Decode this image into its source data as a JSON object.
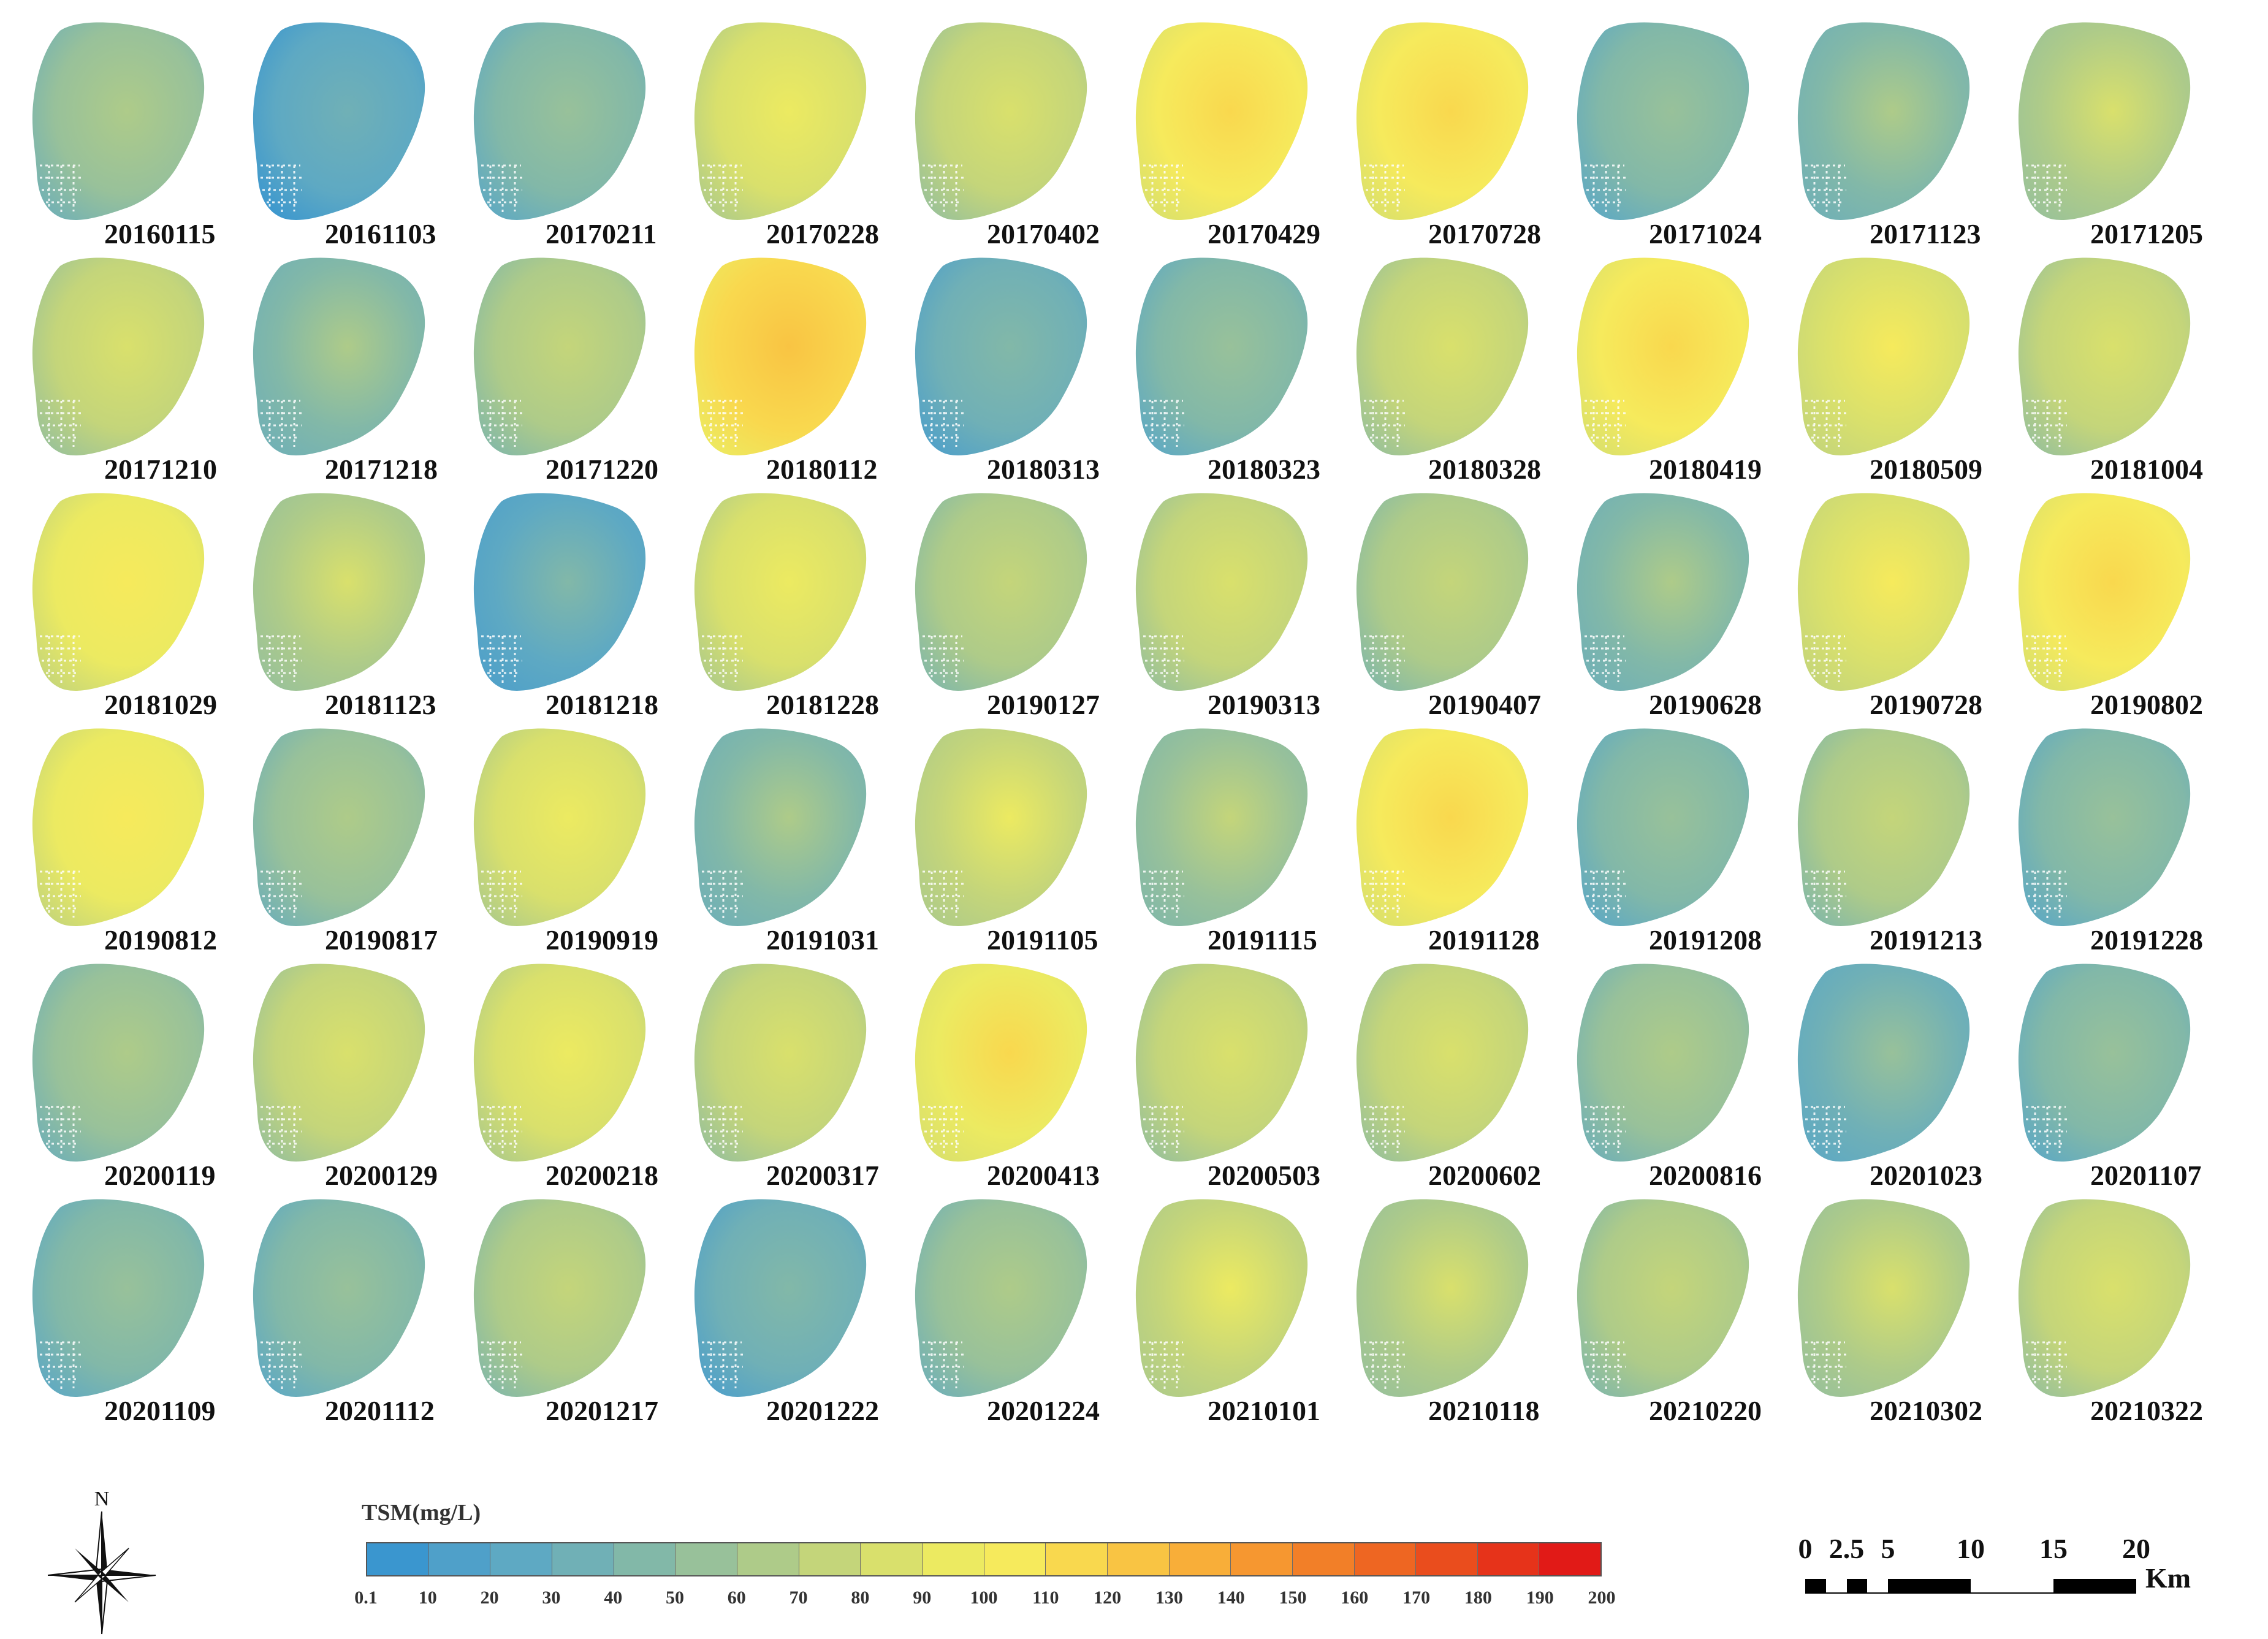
{
  "maps": [
    {
      "date": "20160115",
      "level": 50
    },
    {
      "date": "20161103",
      "level": 22
    },
    {
      "date": "20170211",
      "level": 45
    },
    {
      "date": "20170228",
      "level": 85
    },
    {
      "date": "20170402",
      "level": 72
    },
    {
      "date": "20170429",
      "level": 105
    },
    {
      "date": "20170728",
      "level": 100
    },
    {
      "date": "20171024",
      "level": 40
    },
    {
      "date": "20171123",
      "level": 48
    },
    {
      "date": "20171205",
      "level": 68
    },
    {
      "date": "20171210",
      "level": 72
    },
    {
      "date": "20171218",
      "level": 48
    },
    {
      "date": "20171220",
      "level": 65
    },
    {
      "date": "20180112",
      "level": 112
    },
    {
      "date": "20180313",
      "level": 32
    },
    {
      "date": "20180323",
      "level": 45
    },
    {
      "date": "20180328",
      "level": 70
    },
    {
      "date": "20180419",
      "level": 105
    },
    {
      "date": "20180509",
      "level": 88
    },
    {
      "date": "20181004",
      "level": 75
    },
    {
      "date": "20181029",
      "level": 95
    },
    {
      "date": "20181123",
      "level": 68
    },
    {
      "date": "20181218",
      "level": 28
    },
    {
      "date": "20181228",
      "level": 80
    },
    {
      "date": "20190127",
      "level": 65
    },
    {
      "date": "20190313",
      "level": 72
    },
    {
      "date": "20190407",
      "level": 65
    },
    {
      "date": "20190628",
      "level": 48
    },
    {
      "date": "20190728",
      "level": 88
    },
    {
      "date": "20190802",
      "level": 105
    },
    {
      "date": "20190812",
      "level": 92
    },
    {
      "date": "20190817",
      "level": 55
    },
    {
      "date": "20190919",
      "level": 85
    },
    {
      "date": "20191031",
      "level": 48
    },
    {
      "date": "20191105",
      "level": 78
    },
    {
      "date": "20191115",
      "level": 58
    },
    {
      "date": "20191128",
      "level": 102
    },
    {
      "date": "20191208",
      "level": 45
    },
    {
      "date": "20191213",
      "level": 65
    },
    {
      "date": "20191228",
      "level": 45
    },
    {
      "date": "20200119",
      "level": 50
    },
    {
      "date": "20200129",
      "level": 75
    },
    {
      "date": "20200218",
      "level": 80
    },
    {
      "date": "20200317",
      "level": 72
    },
    {
      "date": "20200413",
      "level": 98
    },
    {
      "date": "20200503",
      "level": 75
    },
    {
      "date": "20200602",
      "level": 75
    },
    {
      "date": "20200816",
      "level": 55
    },
    {
      "date": "20201023",
      "level": 38
    },
    {
      "date": "20201107",
      "level": 45
    },
    {
      "date": "20201109",
      "level": 40
    },
    {
      "date": "20201112",
      "level": 45
    },
    {
      "date": "20201217",
      "level": 62
    },
    {
      "date": "20201222",
      "level": 32
    },
    {
      "date": "20201224",
      "level": 55
    },
    {
      "date": "20210101",
      "level": 78
    },
    {
      "date": "20210118",
      "level": 68
    },
    {
      "date": "20210220",
      "level": 62
    },
    {
      "date": "20210302",
      "level": 68
    },
    {
      "date": "20210322",
      "level": 72
    }
  ],
  "legend": {
    "title": "TSM(mg/L)",
    "ticks": [
      "0.1",
      "10",
      "20",
      "30",
      "40",
      "50",
      "60",
      "70",
      "80",
      "90",
      "100",
      "110",
      "120",
      "130",
      "140",
      "150",
      "160",
      "170",
      "180",
      "190",
      "200"
    ],
    "colors": [
      "#3a96cf",
      "#4fa0c9",
      "#5ea9c3",
      "#70b0b6",
      "#82b8a8",
      "#98c19a",
      "#aecb89",
      "#c4d57a",
      "#d9e06c",
      "#ecea61",
      "#f6ea5c",
      "#f9d84e",
      "#f9c443",
      "#f8ae39",
      "#f69730",
      "#f27f28",
      "#ee6622",
      "#ea4d1d",
      "#e6331a",
      "#e11a17"
    ]
  },
  "compass": {
    "north_label": "N"
  },
  "scale_bar": {
    "labels": [
      "0",
      "2.5",
      "5",
      "10",
      "15",
      "20"
    ],
    "unit": "Km"
  }
}
